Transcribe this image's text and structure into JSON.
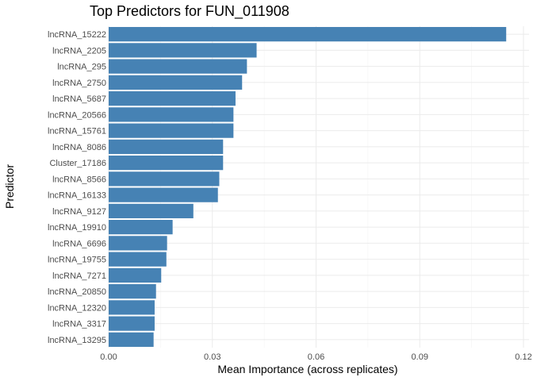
{
  "chart_data": {
    "type": "bar",
    "orientation": "horizontal",
    "title": "Top Predictors for FUN_011908",
    "xlabel": "Mean Importance (across replicates)",
    "ylabel": "Predictor",
    "xlim": [
      0,
      0.12
    ],
    "xticks": [
      0.0,
      0.03,
      0.06,
      0.09,
      0.12
    ],
    "xtick_labels": [
      "0.00",
      "0.03",
      "0.06",
      "0.09",
      "0.12"
    ],
    "grid": true,
    "legend": "none",
    "bar_color": "#4682B4",
    "categories": [
      "lncRNA_15222",
      "lncRNA_2205",
      "lncRNA_295",
      "lncRNA_2750",
      "lncRNA_5687",
      "lncRNA_20566",
      "lncRNA_15761",
      "lncRNA_8086",
      "Cluster_17186",
      "lncRNA_8566",
      "lncRNA_16133",
      "lncRNA_9127",
      "lncRNA_19910",
      "lncRNA_6696",
      "lncRNA_19755",
      "lncRNA_7271",
      "lncRNA_20850",
      "lncRNA_12320",
      "lncRNA_3317",
      "lncRNA_13295"
    ],
    "values": [
      0.115,
      0.0428,
      0.04,
      0.0386,
      0.0367,
      0.0361,
      0.0361,
      0.0331,
      0.0331,
      0.032,
      0.0316,
      0.0245,
      0.0185,
      0.0169,
      0.0167,
      0.0152,
      0.0137,
      0.0133,
      0.0133,
      0.013
    ]
  }
}
